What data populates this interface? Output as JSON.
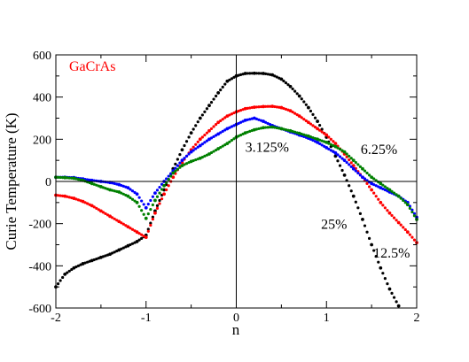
{
  "chart_data": {
    "type": "scatter",
    "title": "",
    "inset_label": "GaCrAs",
    "inset_label_color": "#ff0000",
    "xlabel": "n",
    "ylabel": "Curie Temperature (K)",
    "xlim": [
      -2,
      2
    ],
    "ylim": [
      -600,
      600
    ],
    "x_ticks": [
      "-2",
      "-1",
      "0",
      "1",
      "2"
    ],
    "y_ticks": [
      "600",
      "400",
      "200",
      "0",
      "-200",
      "-400",
      "-600"
    ],
    "zero_lines": true,
    "grid": false,
    "legend": "none",
    "annotations": [
      {
        "text": "3.125%",
        "x": 0.1,
        "y": 140
      },
      {
        "text": "6.25%",
        "x": 1.38,
        "y": 130
      },
      {
        "text": "25%",
        "x": 0.94,
        "y": -225
      },
      {
        "text": "12.5%",
        "x": 1.52,
        "y": -360
      }
    ],
    "series": [
      {
        "color": "#000000",
        "x": [
          -2.0,
          -1.9,
          -1.8,
          -1.7,
          -1.6,
          -1.5,
          -1.4,
          -1.3,
          -1.2,
          -1.1,
          -1.0,
          -0.9,
          -0.8,
          -0.7,
          -0.6,
          -0.5,
          -0.4,
          -0.3,
          -0.2,
          -0.1,
          0.0,
          0.1,
          0.2,
          0.3,
          0.4,
          0.5,
          0.6,
          0.7,
          0.8,
          0.9,
          1.0,
          1.1,
          1.2,
          1.3,
          1.4,
          1.5,
          1.6,
          1.7,
          1.8
        ],
        "y": [
          -500,
          -440,
          -410,
          -390,
          -375,
          -360,
          -345,
          -325,
          -305,
          -285,
          -255,
          -140,
          -40,
          60,
          150,
          230,
          300,
          360,
          420,
          475,
          500,
          512,
          513,
          512,
          505,
          485,
          450,
          405,
          350,
          285,
          210,
          120,
          30,
          -70,
          -180,
          -300,
          -410,
          -510,
          -590
        ]
      },
      {
        "color": "#ff0000",
        "x": [
          -2.0,
          -1.9,
          -1.8,
          -1.7,
          -1.6,
          -1.5,
          -1.4,
          -1.3,
          -1.2,
          -1.1,
          -1.0,
          -0.9,
          -0.8,
          -0.7,
          -0.6,
          -0.5,
          -0.4,
          -0.3,
          -0.2,
          -0.1,
          0.0,
          0.1,
          0.2,
          0.3,
          0.4,
          0.5,
          0.6,
          0.7,
          0.8,
          0.9,
          1.0,
          1.1,
          1.2,
          1.3,
          1.4,
          1.5,
          1.6,
          1.7,
          1.8,
          1.9,
          2.0
        ],
        "y": [
          -65,
          -70,
          -80,
          -95,
          -115,
          -140,
          -165,
          -190,
          -215,
          -240,
          -265,
          -150,
          -60,
          20,
          90,
          150,
          200,
          240,
          280,
          310,
          330,
          345,
          352,
          355,
          356,
          350,
          335,
          310,
          280,
          250,
          220,
          180,
          130,
          75,
          20,
          -40,
          -100,
          -150,
          -195,
          -240,
          -290
        ]
      },
      {
        "color": "#0000ff",
        "x": [
          -2.0,
          -1.9,
          -1.8,
          -1.7,
          -1.6,
          -1.5,
          -1.4,
          -1.3,
          -1.2,
          -1.1,
          -1.0,
          -0.9,
          -0.8,
          -0.7,
          -0.6,
          -0.5,
          -0.4,
          -0.3,
          -0.2,
          -0.1,
          0.0,
          0.1,
          0.2,
          0.3,
          0.4,
          0.5,
          0.6,
          0.7,
          0.8,
          0.9,
          1.0,
          1.1,
          1.2,
          1.3,
          1.4,
          1.5,
          1.6,
          1.7,
          1.8,
          1.9,
          2.0
        ],
        "y": [
          20,
          20,
          18,
          12,
          5,
          0,
          -5,
          -15,
          -30,
          -60,
          -125,
          -55,
          0,
          50,
          100,
          140,
          170,
          200,
          225,
          250,
          270,
          290,
          300,
          285,
          265,
          250,
          235,
          220,
          205,
          185,
          160,
          135,
          100,
          60,
          20,
          -10,
          -30,
          -50,
          -70,
          -100,
          -170
        ]
      },
      {
        "color": "#008000",
        "x": [
          -2.0,
          -1.9,
          -1.8,
          -1.7,
          -1.6,
          -1.5,
          -1.4,
          -1.3,
          -1.2,
          -1.1,
          -1.0,
          -0.9,
          -0.8,
          -0.7,
          -0.6,
          -0.5,
          -0.4,
          -0.3,
          -0.2,
          -0.1,
          0.0,
          0.1,
          0.2,
          0.3,
          0.4,
          0.5,
          0.6,
          0.7,
          0.8,
          0.9,
          1.0,
          1.1,
          1.2,
          1.3,
          1.4,
          1.5,
          1.6,
          1.7,
          1.8,
          1.9,
          2.0
        ],
        "y": [
          20,
          18,
          15,
          5,
          -10,
          -25,
          -40,
          -50,
          -70,
          -100,
          -175,
          -90,
          -20,
          40,
          75,
          95,
          110,
          130,
          155,
          180,
          210,
          230,
          245,
          255,
          258,
          250,
          240,
          228,
          215,
          200,
          185,
          165,
          140,
          100,
          60,
          20,
          -10,
          -40,
          -70,
          -110,
          -180
        ]
      }
    ]
  }
}
